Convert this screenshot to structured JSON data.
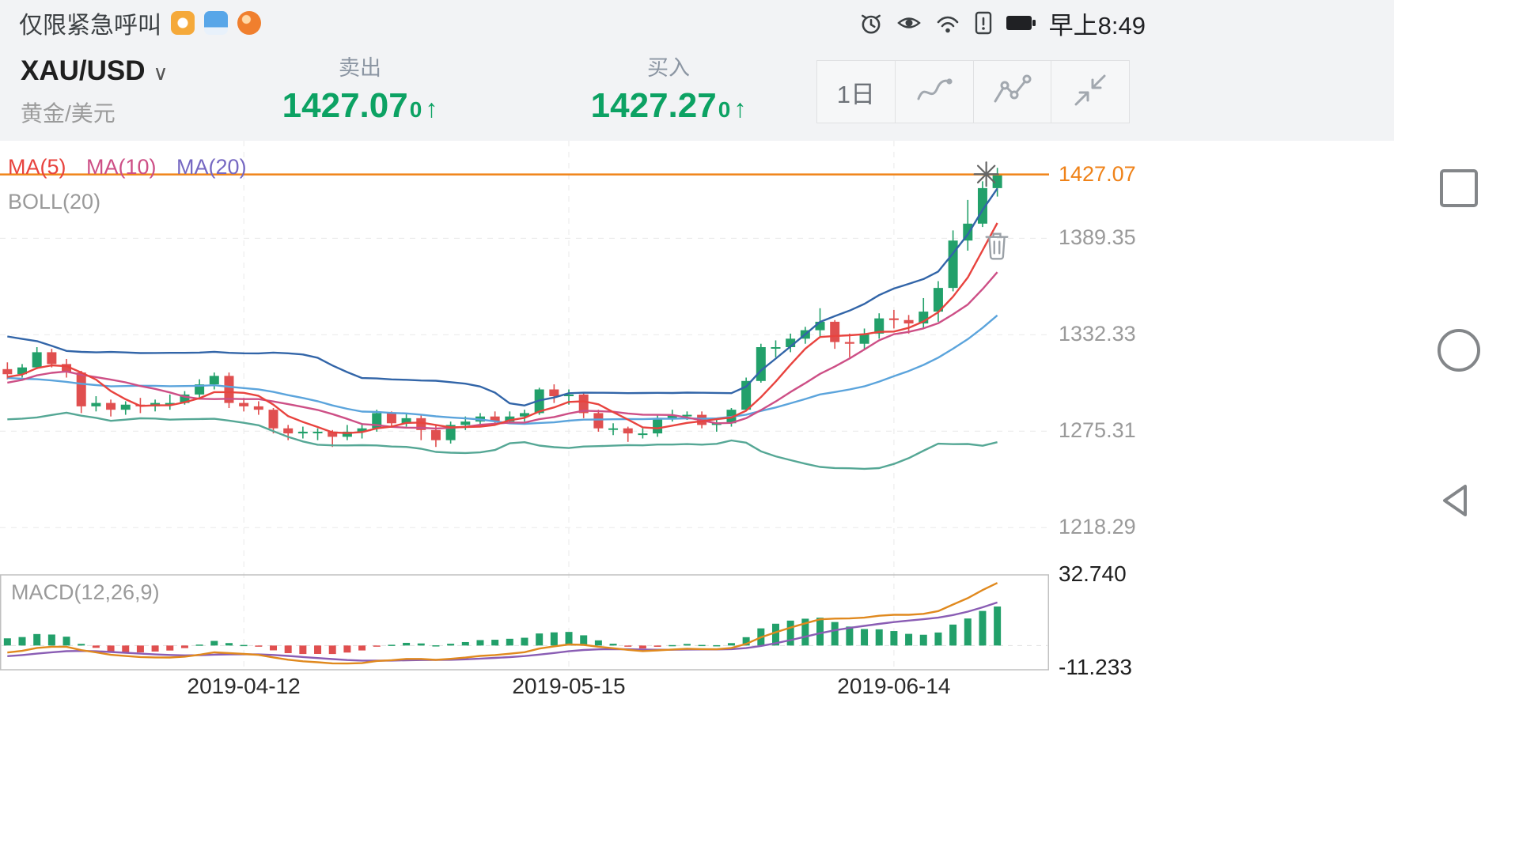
{
  "status_bar": {
    "carrier_text": "仅限紧急呼叫",
    "time": "早上8:49",
    "icons": [
      "alarm-icon",
      "eye-icon",
      "wifi-icon",
      "sim-alert-icon",
      "battery-icon"
    ]
  },
  "header": {
    "symbol": "XAU/USD",
    "symbol_name": "黄金/美元",
    "sell_label": "卖出",
    "sell_price_main": "1427.07",
    "sell_price_sub": "0",
    "sell_arrow": "↑",
    "buy_label": "买入",
    "buy_price_main": "1427.27",
    "buy_price_sub": "0",
    "buy_arrow": "↑",
    "period_button": "1日",
    "tool_icons": [
      "draw-tool-icon",
      "line-chart-icon",
      "collapse-icon"
    ]
  },
  "nav_bar": {
    "buttons": [
      "recents",
      "home",
      "back"
    ]
  },
  "chart_data": {
    "type": "candlestick",
    "symbol": "XAU/USD",
    "period": "1日",
    "indicator_labels": {
      "ma5": "MA(5)",
      "ma10": "MA(10)",
      "ma20": "MA(20)",
      "boll": "BOLL(20)",
      "macd": "MACD(12,26,9)"
    },
    "y_axis_labels": [
      1389.35,
      1332.33,
      1275.31,
      1218.29
    ],
    "current_price": 1427.07,
    "current_price_label": "1427.07",
    "price_axis_range": [
      1203,
      1447
    ],
    "macd_axis": {
      "max": 32.74,
      "min": -11.233,
      "max_label": "32.740",
      "min_label": "-11.233"
    },
    "x_axis_labels": [
      {
        "text": "2019-04-12",
        "index": 16
      },
      {
        "text": "2019-05-15",
        "index": 38
      },
      {
        "text": "2019-06-14",
        "index": 60
      }
    ],
    "colors": {
      "up": "#22a06a",
      "down": "#e04f4f",
      "ma5": "#e8433e",
      "ma10": "#cd4f86",
      "ma20": "#5ba4dc",
      "boll_upper": "#3265a8",
      "boll_lower": "#55a795",
      "price_line": "#f08419",
      "dif": "#e0891e",
      "dea": "#8a5db4",
      "grid": "#e9e9e9",
      "panel_border": "#c0c0c0"
    },
    "warmup_closes": [
      1324,
      1323,
      1328,
      1329,
      1326,
      1313,
      1308,
      1303,
      1287,
      1286,
      1293,
      1297,
      1295,
      1300,
      1302,
      1309,
      1306,
      1303,
      1307,
      1312
    ],
    "candles": [
      [
        "2019-03-21",
        1312,
        1316,
        1306,
        1309
      ],
      [
        "2019-03-22",
        1309,
        1315,
        1307,
        1313
      ],
      [
        "2019-03-25",
        1313,
        1325,
        1312,
        1322
      ],
      [
        "2019-03-26",
        1322,
        1324,
        1313,
        1315
      ],
      [
        "2019-03-27",
        1315,
        1318,
        1307,
        1310
      ],
      [
        "2019-03-28",
        1310,
        1311,
        1286,
        1290
      ],
      [
        "2019-03-29",
        1290,
        1296,
        1287,
        1292
      ],
      [
        "2019-04-01",
        1292,
        1294,
        1284,
        1288
      ],
      [
        "2019-04-02",
        1288,
        1293,
        1285,
        1291
      ],
      [
        "2019-04-03",
        1291,
        1295,
        1286,
        1290
      ],
      [
        "2019-04-04",
        1290,
        1294,
        1287,
        1292
      ],
      [
        "2019-04-05",
        1292,
        1297,
        1288,
        1292
      ],
      [
        "2019-04-08",
        1292,
        1299,
        1291,
        1297
      ],
      [
        "2019-04-09",
        1297,
        1306,
        1295,
        1303
      ],
      [
        "2019-04-10",
        1303,
        1310,
        1300,
        1308
      ],
      [
        "2019-04-11",
        1308,
        1310,
        1289,
        1292
      ],
      [
        "2019-04-12",
        1292,
        1295,
        1287,
        1290
      ],
      [
        "2019-04-15",
        1290,
        1293,
        1285,
        1288
      ],
      [
        "2019-04-16",
        1288,
        1289,
        1274,
        1277
      ],
      [
        "2019-04-17",
        1277,
        1279,
        1270,
        1274
      ],
      [
        "2019-04-18",
        1274,
        1278,
        1271,
        1275
      ],
      [
        "2019-04-22",
        1275,
        1277,
        1270,
        1275
      ],
      [
        "2019-04-23",
        1275,
        1276,
        1266,
        1272
      ],
      [
        "2019-04-24",
        1272,
        1279,
        1270,
        1275
      ],
      [
        "2019-04-25",
        1275,
        1280,
        1271,
        1277
      ],
      [
        "2019-04-26",
        1277,
        1288,
        1275,
        1286
      ],
      [
        "2019-04-29",
        1286,
        1287,
        1278,
        1280
      ],
      [
        "2019-04-30",
        1280,
        1286,
        1278,
        1283
      ],
      [
        "2019-05-01",
        1283,
        1285,
        1270,
        1276
      ],
      [
        "2019-05-02",
        1276,
        1279,
        1266,
        1270
      ],
      [
        "2019-05-03",
        1270,
        1281,
        1268,
        1279
      ],
      [
        "2019-05-06",
        1279,
        1284,
        1276,
        1281
      ],
      [
        "2019-05-07",
        1281,
        1286,
        1279,
        1284
      ],
      [
        "2019-05-08",
        1284,
        1287,
        1279,
        1281
      ],
      [
        "2019-05-09",
        1281,
        1287,
        1280,
        1284
      ],
      [
        "2019-05-10",
        1284,
        1288,
        1281,
        1286
      ],
      [
        "2019-05-13",
        1286,
        1301,
        1285,
        1300
      ],
      [
        "2019-05-14",
        1300,
        1303,
        1292,
        1296
      ],
      [
        "2019-05-15",
        1296,
        1300,
        1291,
        1297
      ],
      [
        "2019-05-16",
        1297,
        1298,
        1283,
        1286
      ],
      [
        "2019-05-17",
        1286,
        1288,
        1275,
        1277
      ],
      [
        "2019-05-20",
        1277,
        1280,
        1273,
        1277
      ],
      [
        "2019-05-21",
        1277,
        1278,
        1269,
        1274
      ],
      [
        "2019-05-22",
        1274,
        1277,
        1271,
        1274
      ],
      [
        "2019-05-23",
        1274,
        1285,
        1272,
        1283
      ],
      [
        "2019-05-24",
        1283,
        1288,
        1281,
        1285
      ],
      [
        "2019-05-27",
        1285,
        1287,
        1282,
        1285
      ],
      [
        "2019-05-28",
        1285,
        1287,
        1277,
        1279
      ],
      [
        "2019-05-29",
        1279,
        1283,
        1275,
        1280
      ],
      [
        "2019-05-30",
        1280,
        1289,
        1278,
        1288
      ],
      [
        "2019-05-31",
        1288,
        1307,
        1287,
        1305
      ],
      [
        "2019-06-03",
        1305,
        1327,
        1304,
        1325
      ],
      [
        "2019-06-04",
        1325,
        1329,
        1319,
        1325
      ],
      [
        "2019-06-05",
        1325,
        1333,
        1322,
        1330
      ],
      [
        "2019-06-06",
        1330,
        1337,
        1327,
        1335
      ],
      [
        "2019-06-07",
        1335,
        1348,
        1331,
        1340
      ],
      [
        "2019-06-10",
        1340,
        1341,
        1324,
        1328
      ],
      [
        "2019-06-11",
        1328,
        1333,
        1319,
        1327
      ],
      [
        "2019-06-12",
        1327,
        1336,
        1324,
        1333
      ],
      [
        "2019-06-13",
        1333,
        1345,
        1330,
        1342
      ],
      [
        "2019-06-14",
        1342,
        1347,
        1336,
        1341
      ],
      [
        "2019-06-17",
        1341,
        1344,
        1333,
        1339
      ],
      [
        "2019-06-18",
        1339,
        1354,
        1336,
        1346
      ],
      [
        "2019-06-19",
        1346,
        1364,
        1340,
        1360
      ],
      [
        "2019-06-20",
        1360,
        1394,
        1358,
        1388
      ],
      [
        "2019-06-21",
        1388,
        1412,
        1382,
        1398
      ],
      [
        "2019-06-24",
        1398,
        1423,
        1396,
        1419
      ],
      [
        "2019-06-25",
        1419,
        1431,
        1414,
        1427
      ]
    ]
  }
}
